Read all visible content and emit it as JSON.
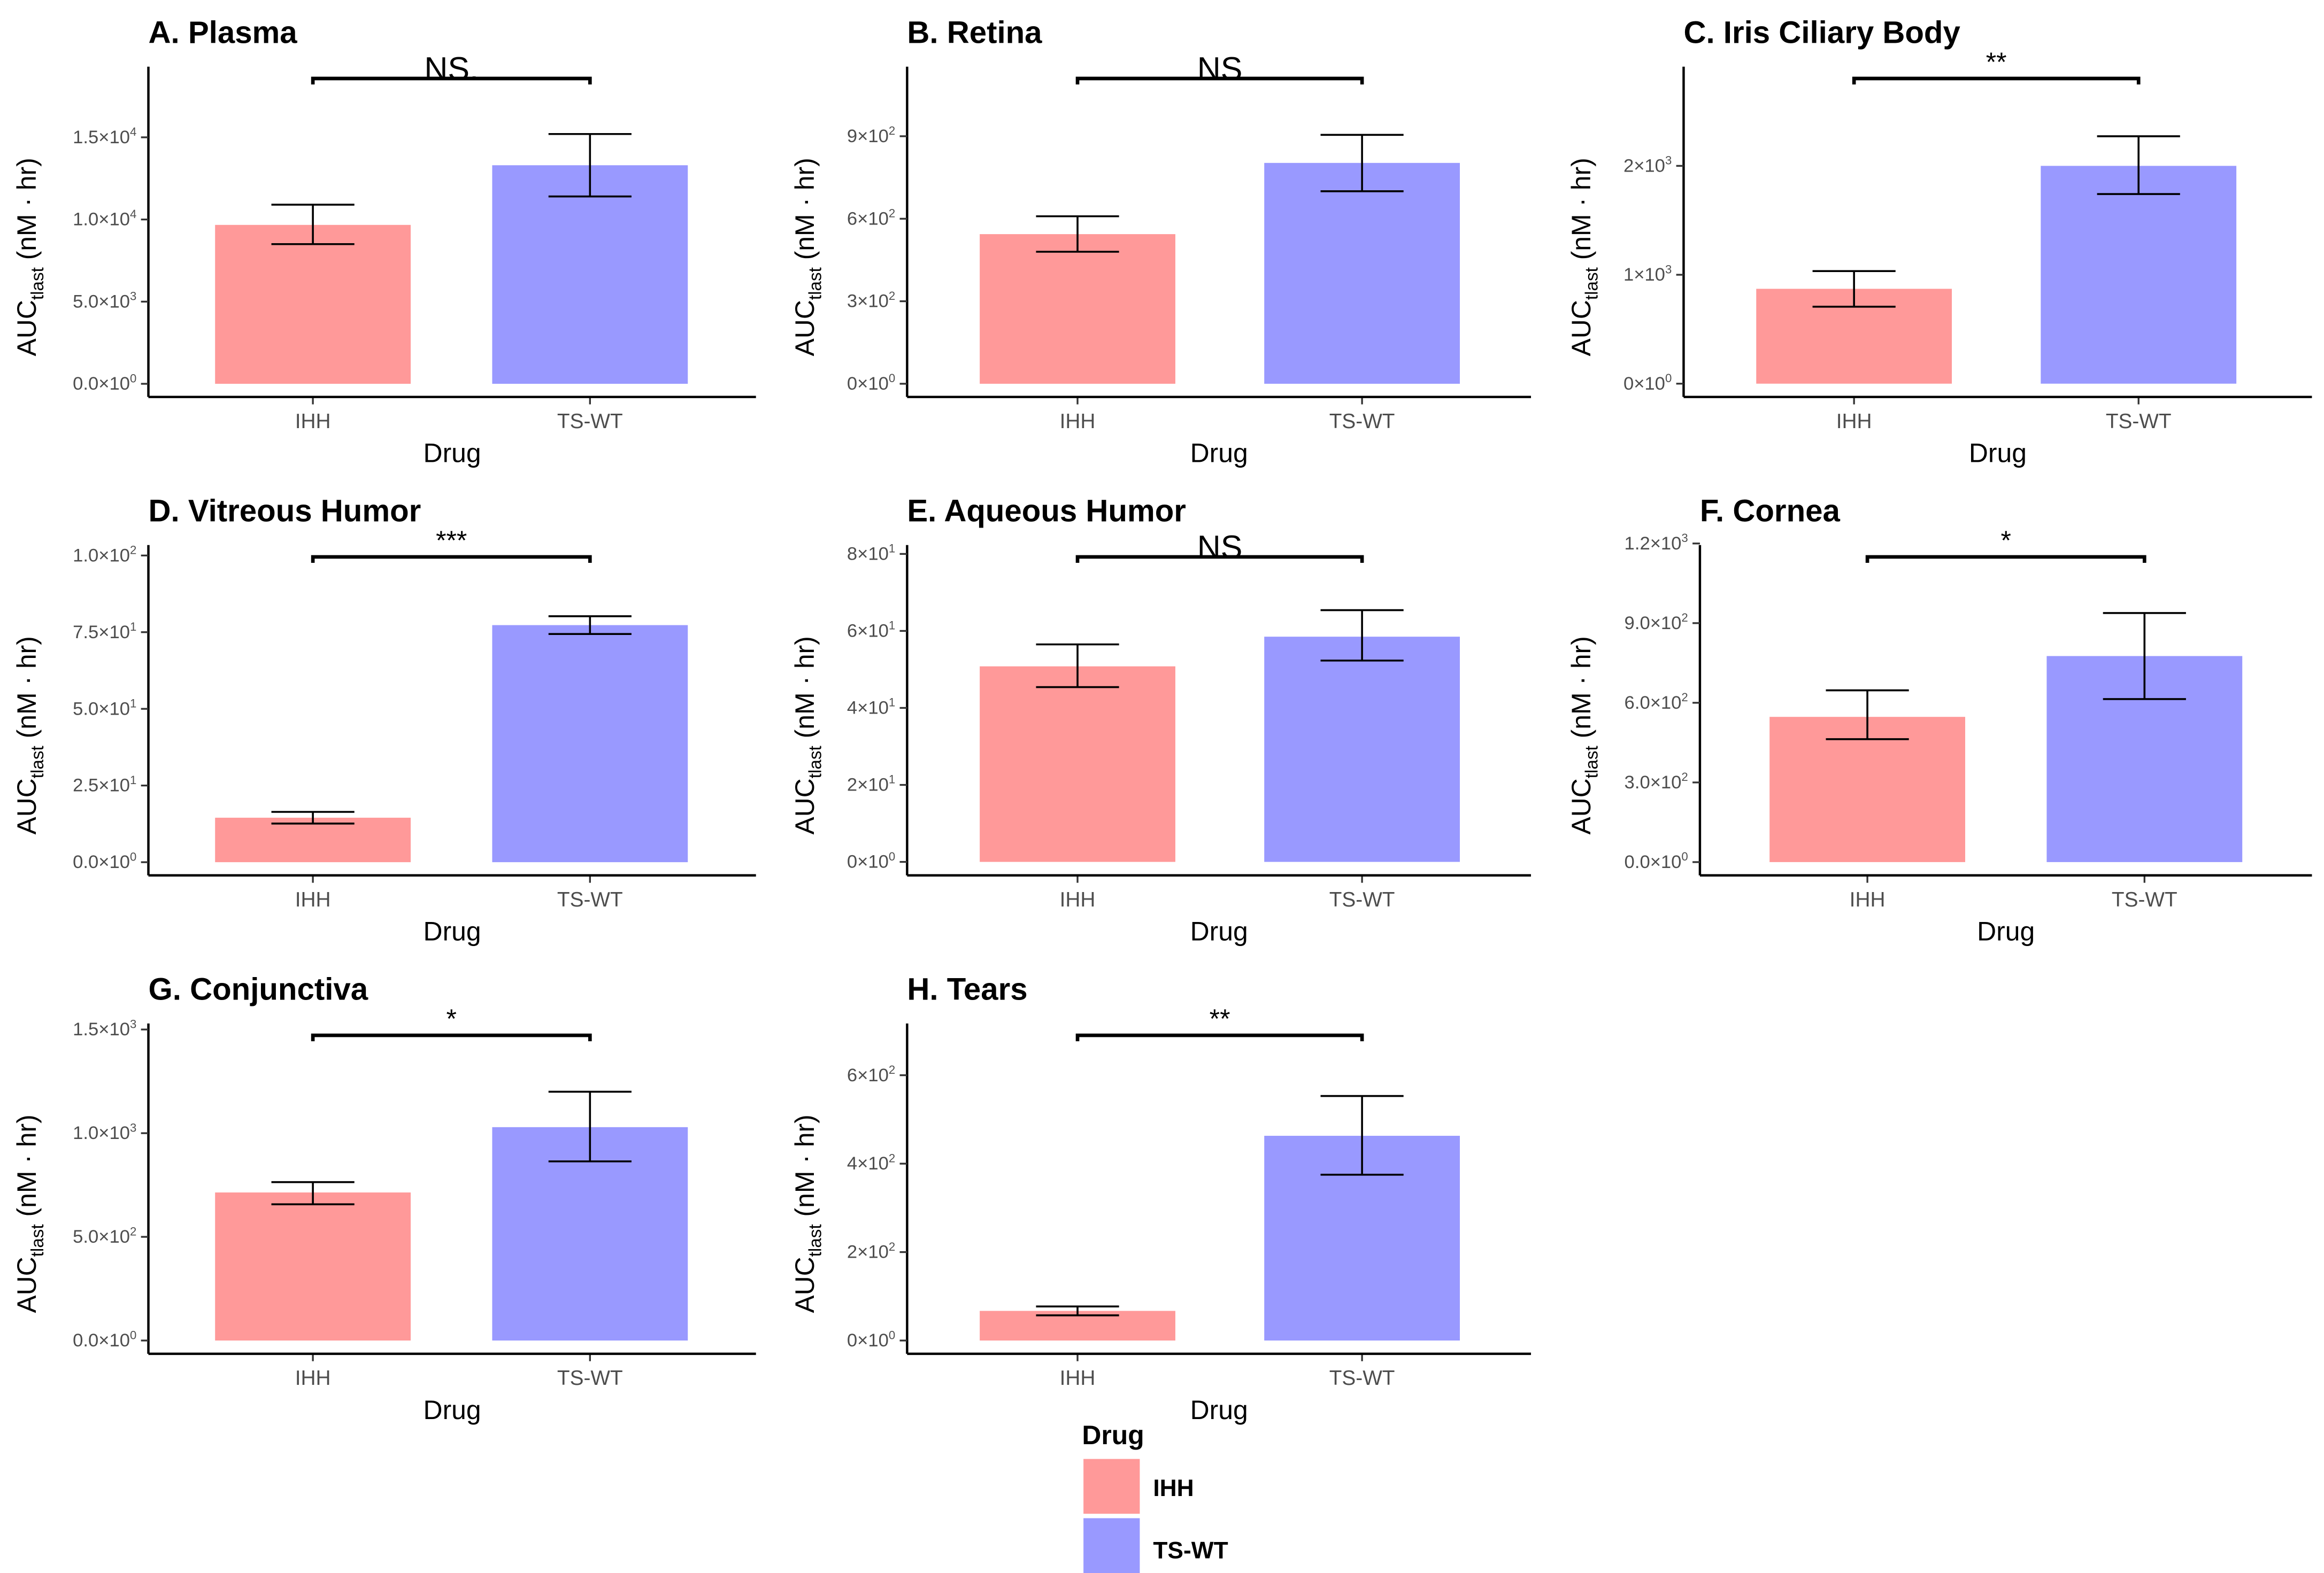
{
  "chart_data": [
    {
      "type": "bar",
      "title": "A. Plasma",
      "xlabel": "Drug",
      "ylabel": {
        "main": "AUC",
        "sub": "tlast",
        "unit": " (nM · hr)"
      },
      "categories": [
        "IHH",
        "TS-WT"
      ],
      "values": [
        9670,
        13300
      ],
      "error_low": [
        8500,
        11400
      ],
      "error_high": [
        10900,
        15200
      ],
      "ylim": [
        -800,
        19300
      ],
      "yticks": [
        {
          "value": 0,
          "mant": "0.0",
          "exp": "0"
        },
        {
          "value": 5000,
          "mant": "5.0",
          "exp": "3"
        },
        {
          "value": 10000,
          "mant": "1.0",
          "exp": "4"
        },
        {
          "value": 15000,
          "mant": "1.5",
          "exp": "4"
        }
      ],
      "significance": "NS."
    },
    {
      "type": "bar",
      "title": "B. Retina",
      "xlabel": "Drug",
      "ylabel": {
        "main": "AUC",
        "sub": "tlast",
        "unit": " (nM · hr)"
      },
      "categories": [
        "IHH",
        "TS-WT"
      ],
      "values": [
        544,
        803
      ],
      "error_low": [
        480,
        700
      ],
      "error_high": [
        609,
        905
      ],
      "ylim": [
        -48,
        1153
      ],
      "yticks": [
        {
          "value": 0,
          "mant": "0",
          "exp": "0"
        },
        {
          "value": 300,
          "mant": "3",
          "exp": "2"
        },
        {
          "value": 600,
          "mant": "6",
          "exp": "2"
        },
        {
          "value": 900,
          "mant": "9",
          "exp": "2"
        }
      ],
      "significance": "NS"
    },
    {
      "type": "bar",
      "title": "C. Iris Ciliary Body",
      "xlabel": "Drug",
      "ylabel": {
        "main": "AUC",
        "sub": "tlast",
        "unit": " (nM · hr)"
      },
      "categories": [
        "IHH",
        "TS-WT"
      ],
      "values": [
        871,
        2000
      ],
      "error_low": [
        707,
        1741
      ],
      "error_high": [
        1034,
        2272
      ],
      "ylim": [
        -122,
        2911
      ],
      "yticks": [
        {
          "value": 0,
          "mant": "0",
          "exp": "0"
        },
        {
          "value": 1000,
          "mant": "1",
          "exp": "3"
        },
        {
          "value": 2000,
          "mant": "2",
          "exp": "3"
        }
      ],
      "significance": "**"
    },
    {
      "type": "bar",
      "title": "D. Vitreous Humor",
      "xlabel": "Drug",
      "ylabel": {
        "main": "AUC",
        "sub": "tlast",
        "unit": " (nM · hr)"
      },
      "categories": [
        "IHH",
        "TS-WT"
      ],
      "values": [
        14.5,
        77.3
      ],
      "error_low": [
        12.6,
        74.4
      ],
      "error_high": [
        16.4,
        80.2
      ],
      "ylim": [
        -4.3,
        103.4
      ],
      "yticks": [
        {
          "value": 0,
          "mant": "0.0",
          "exp": "0"
        },
        {
          "value": 25,
          "mant": "2.5",
          "exp": "1"
        },
        {
          "value": 50,
          "mant": "5.0",
          "exp": "1"
        },
        {
          "value": 75,
          "mant": "7.5",
          "exp": "1"
        },
        {
          "value": 100,
          "mant": "1.0",
          "exp": "2"
        }
      ],
      "significance": "***"
    },
    {
      "type": "bar",
      "title": "E. Aqueous Humor",
      "xlabel": "Drug",
      "ylabel": {
        "main": "AUC",
        "sub": "tlast",
        "unit": " (nM · hr)"
      },
      "categories": [
        "IHH",
        "TS-WT"
      ],
      "values": [
        50.8,
        58.5
      ],
      "error_low": [
        45.4,
        52.3
      ],
      "error_high": [
        56.5,
        65.4
      ],
      "ylim": [
        -3.5,
        82.3
      ],
      "yticks": [
        {
          "value": 0,
          "mant": "0",
          "exp": "0"
        },
        {
          "value": 20,
          "mant": "2",
          "exp": "1"
        },
        {
          "value": 40,
          "mant": "4",
          "exp": "1"
        },
        {
          "value": 60,
          "mant": "6",
          "exp": "1"
        },
        {
          "value": 80,
          "mant": "8",
          "exp": "1"
        }
      ],
      "significance": "NS"
    },
    {
      "type": "bar",
      "title": "F. Cornea",
      "xlabel": "Drug",
      "ylabel": {
        "main": "AUC",
        "sub": "tlast",
        "unit": " (nM · hr)"
      },
      "categories": [
        "IHH",
        "TS-WT"
      ],
      "values": [
        547,
        776
      ],
      "error_low": [
        463,
        614
      ],
      "error_high": [
        647,
        938
      ],
      "ylim": [
        -50,
        1194
      ],
      "yticks": [
        {
          "value": 0,
          "mant": "0.0",
          "exp": "0"
        },
        {
          "value": 300,
          "mant": "3.0",
          "exp": "2"
        },
        {
          "value": 600,
          "mant": "6.0",
          "exp": "2"
        },
        {
          "value": 900,
          "mant": "9.0",
          "exp": "2"
        },
        {
          "value": 1200,
          "mant": "1.2",
          "exp": "3"
        }
      ],
      "significance": "*"
    },
    {
      "type": "bar",
      "title": "G. Conjunctiva",
      "xlabel": "Drug",
      "ylabel": {
        "main": "AUC",
        "sub": "tlast",
        "unit": " (nM · hr)"
      },
      "categories": [
        "IHH",
        "TS-WT"
      ],
      "values": [
        714,
        1029
      ],
      "error_low": [
        657,
        864
      ],
      "error_high": [
        764,
        1200
      ],
      "ylim": [
        -64,
        1529
      ],
      "yticks": [
        {
          "value": 0,
          "mant": "0.0",
          "exp": "0"
        },
        {
          "value": 500,
          "mant": "5.0",
          "exp": "2"
        },
        {
          "value": 1000,
          "mant": "1.0",
          "exp": "3"
        },
        {
          "value": 1500,
          "mant": "1.5",
          "exp": "3"
        }
      ],
      "significance": "*"
    },
    {
      "type": "bar",
      "title": "H. Tears",
      "xlabel": "Drug",
      "ylabel": {
        "main": "AUC",
        "sub": "tlast",
        "unit": " (nM · hr)"
      },
      "categories": [
        "IHH",
        "TS-WT"
      ],
      "values": [
        67,
        463
      ],
      "error_low": [
        57,
        375
      ],
      "error_high": [
        77,
        553
      ],
      "ylim": [
        -30,
        717
      ],
      "yticks": [
        {
          "value": 0,
          "mant": "0",
          "exp": "0"
        },
        {
          "value": 200,
          "mant": "2",
          "exp": "2"
        },
        {
          "value": 400,
          "mant": "4",
          "exp": "2"
        },
        {
          "value": 600,
          "mant": "6",
          "exp": "2"
        }
      ],
      "significance": "**"
    }
  ],
  "legend": {
    "title": "Drug",
    "items": [
      {
        "label": "IHH",
        "color": "#ff9999"
      },
      {
        "label": "TS-WT",
        "color": "#9999ff"
      }
    ]
  }
}
